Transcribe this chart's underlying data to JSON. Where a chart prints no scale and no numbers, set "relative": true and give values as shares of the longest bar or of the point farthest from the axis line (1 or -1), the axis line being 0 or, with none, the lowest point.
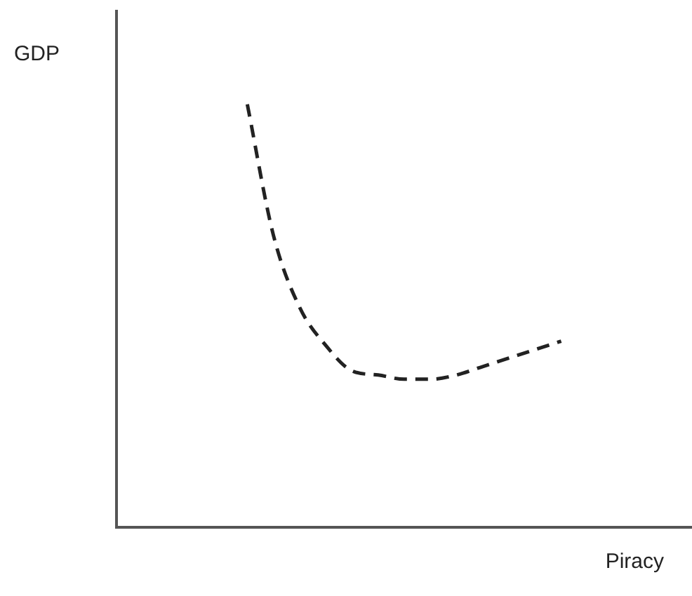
{
  "chart_data": {
    "type": "line",
    "relative": true,
    "xlabel": "Piracy",
    "ylabel": "GDP",
    "categories": [
      null,
      null,
      null,
      null,
      null,
      null,
      null,
      null,
      null,
      null,
      null,
      null,
      null,
      null,
      null,
      null,
      null,
      null,
      null,
      null,
      null,
      null,
      null
    ],
    "series": [
      {
        "color": "#222222",
        "values": [
          null,
          null,
          null,
          null,
          null,
          1.0,
          0.69,
          0.52,
          0.43,
          0.37,
          0.36,
          0.35,
          0.35,
          0.36,
          0.38,
          0.4,
          0.42,
          0.44,
          null,
          null,
          null,
          null,
          null
        ]
      }
    ],
    "line_style": "dashed",
    "marker": "none",
    "legend": false,
    "grid": false
  }
}
